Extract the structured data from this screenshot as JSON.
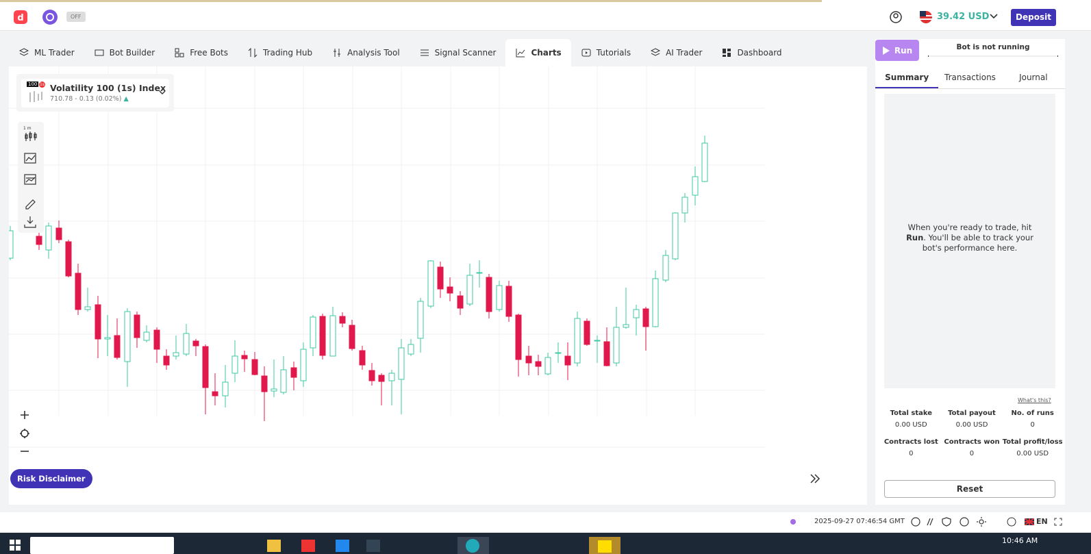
{
  "header": {
    "toggle": "OFF",
    "balance": "39.42 USD",
    "deposit": "Deposit"
  },
  "tabs": [
    "ML Trader",
    "Bot Builder",
    "Free Bots",
    "Trading Hub",
    "Analysis Tool",
    "Signal Scanner",
    "Charts",
    "Tutorials",
    "AI Trader",
    "Dashboard"
  ],
  "symbol": {
    "badge": "100",
    "badge_sub": "1s",
    "name": "Volatility 100 (1s) Index",
    "quote": "710.78 - 0.13 (0.02%)",
    "interval": "1 m"
  },
  "risk_disclaimer": "Risk Disclaimer",
  "run_panel": {
    "run": "Run",
    "status": "Bot is not running",
    "tabs": [
      "Summary",
      "Transactions",
      "Journal"
    ],
    "message": {
      "before": "When you're ready to trade, hit ",
      "bold": "Run",
      "after": ". You'll be able to track your bot's performance here."
    },
    "whats_this": "What's this?",
    "stats": [
      {
        "label": "Total stake",
        "value": "0.00 USD"
      },
      {
        "label": "Total payout",
        "value": "0.00 USD"
      },
      {
        "label": "No. of runs",
        "value": "0"
      },
      {
        "label": "Contracts lost",
        "value": "0"
      },
      {
        "label": "Contracts won",
        "value": "0"
      },
      {
        "label": "Total profit/loss",
        "value": "0.00 USD"
      }
    ],
    "reset": "Reset"
  },
  "footer": {
    "time": "2025-09-27 07:46:54 GMT",
    "language": "EN"
  },
  "taskbar": {
    "clock": "10:46 AM"
  }
}
